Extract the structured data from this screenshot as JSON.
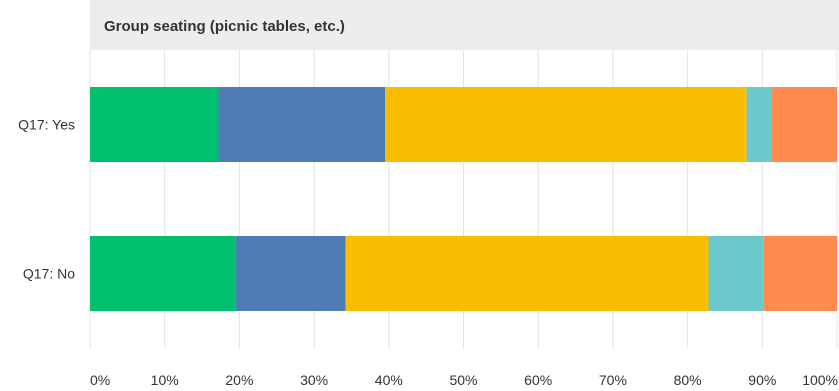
{
  "chart_data": {
    "type": "bar",
    "orientation": "horizontal",
    "stacked": true,
    "title": "Group seating (picnic tables, etc.)",
    "categories": [
      "Q17: Yes",
      "Q17: No"
    ],
    "series": [
      {
        "values": [
          17.2,
          19.5
        ],
        "color": "#00bf6f"
      },
      {
        "values": [
          22.3,
          14.7
        ],
        "color": "#507cb6"
      },
      {
        "values": [
          48.4,
          48.6
        ],
        "color": "#f9be00"
      },
      {
        "values": [
          3.4,
          7.4
        ],
        "color": "#6bc8cd"
      },
      {
        "values": [
          8.7,
          9.8
        ],
        "color": "#ff8b4f"
      }
    ],
    "xlim": [
      0,
      100
    ],
    "xticks": [
      "0%",
      "10%",
      "20%",
      "30%",
      "40%",
      "50%",
      "60%",
      "70%",
      "80%",
      "90%",
      "100%"
    ],
    "grid": true,
    "legend": "none"
  }
}
